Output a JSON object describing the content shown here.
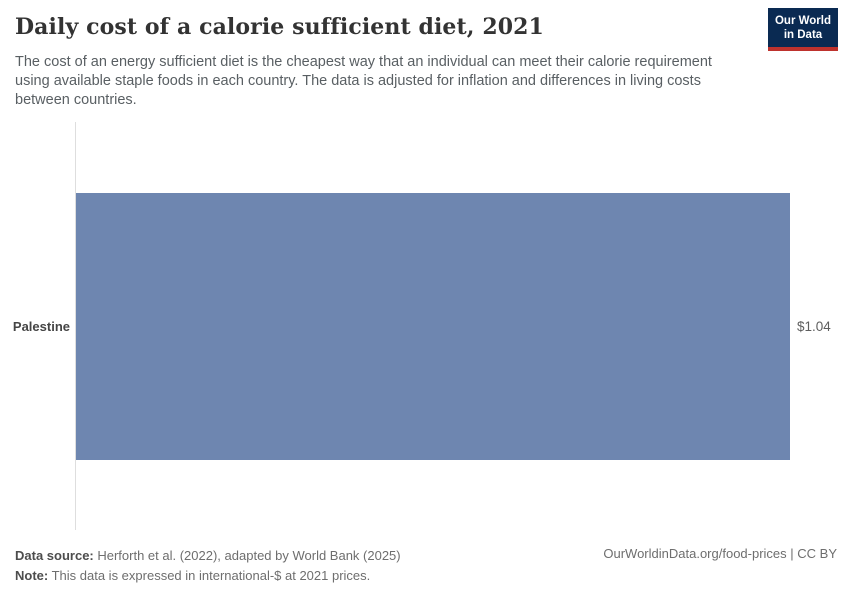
{
  "header": {
    "title": "Daily cost of a calorie sufficient diet, 2021",
    "subtitle": "The cost of an energy sufficient diet is the cheapest way that an individual can meet their calorie requirement\nusing available staple foods in each country. The data is adjusted for inflation and differences in living costs\nbetween countries.",
    "logo_line1": "Our World",
    "logo_line2": "in Data"
  },
  "chart_data": {
    "type": "bar",
    "orientation": "horizontal",
    "title": "Daily cost of a calorie sufficient diet, 2021",
    "categories": [
      "Palestine"
    ],
    "values": [
      1.04
    ],
    "value_labels": [
      "$1.04"
    ],
    "unit": "international-$ at 2021 prices",
    "x_axis_max": 1.04,
    "grid": false,
    "legend": false,
    "bar_color": "#6e86b0"
  },
  "chart": {
    "entity_label": "Palestine",
    "value_label": "$1.04"
  },
  "footer": {
    "data_source_label": "Data source:",
    "data_source_text": " Herforth et al. (2022), adapted by World Bank (2025)",
    "note_label": "Note:",
    "note_text": " This data is expressed in international-$ at 2021 prices.",
    "link": "OurWorldinData.org/food-prices | CC BY"
  },
  "colors": {
    "bar": "#6e86b0",
    "logo_navy": "#0a2a52",
    "logo_red": "#be322d",
    "axis": "#dedede"
  }
}
